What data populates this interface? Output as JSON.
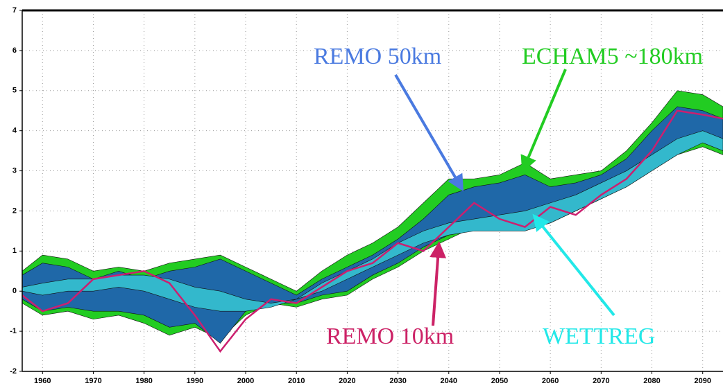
{
  "chart_data": {
    "type": "band",
    "x": [
      1956,
      1960,
      1965,
      1970,
      1975,
      1980,
      1985,
      1990,
      1995,
      2000,
      2005,
      2010,
      2015,
      2020,
      2025,
      2030,
      2035,
      2040,
      2045,
      2050,
      2055,
      2060,
      2065,
      2070,
      2075,
      2080,
      2085,
      2090,
      2094
    ],
    "xlim": [
      1956,
      2094
    ],
    "xticks": [
      1960,
      1970,
      1980,
      1990,
      2000,
      2010,
      2020,
      2030,
      2040,
      2050,
      2060,
      2070,
      2080,
      2090
    ],
    "ylim": [
      -2,
      7
    ],
    "yticks": [
      -2,
      -1,
      0,
      1,
      2,
      3,
      4,
      5,
      6,
      7
    ],
    "grid": true,
    "series": [
      {
        "name": "ECHAM5 ~180km",
        "color": "#22cc22",
        "upper": [
          0.5,
          0.9,
          0.8,
          0.5,
          0.6,
          0.5,
          0.7,
          0.8,
          0.9,
          0.6,
          0.3,
          0.0,
          0.5,
          0.9,
          1.2,
          1.6,
          2.2,
          2.8,
          2.8,
          2.9,
          3.2,
          2.8,
          2.9,
          3.0,
          3.5,
          4.2,
          5.0,
          4.9,
          4.6
        ],
        "lower": [
          -0.3,
          -0.6,
          -0.5,
          -0.7,
          -0.6,
          -0.8,
          -1.1,
          -0.9,
          -1.2,
          -0.6,
          -0.3,
          -0.4,
          -0.2,
          -0.1,
          0.3,
          0.6,
          1.0,
          1.3,
          1.6,
          1.7,
          1.8,
          1.7,
          2.0,
          2.3,
          2.6,
          3.0,
          3.4,
          3.6,
          3.4
        ]
      },
      {
        "name": "REMO 50km",
        "color": "#1f68a8",
        "upper": [
          0.4,
          0.7,
          0.6,
          0.3,
          0.5,
          0.3,
          0.5,
          0.6,
          0.8,
          0.5,
          0.2,
          -0.1,
          0.3,
          0.6,
          0.9,
          1.3,
          1.8,
          2.4,
          2.6,
          2.7,
          2.9,
          2.6,
          2.7,
          2.9,
          3.3,
          4.0,
          4.6,
          4.5,
          4.3
        ],
        "lower": [
          -0.2,
          -0.5,
          -0.4,
          -0.5,
          -0.5,
          -0.6,
          -0.9,
          -0.8,
          -1.3,
          -0.5,
          -0.3,
          -0.3,
          -0.1,
          0.0,
          0.4,
          0.7,
          1.1,
          1.4,
          1.6,
          1.7,
          1.8,
          1.8,
          2.1,
          2.4,
          2.7,
          3.1,
          3.5,
          3.7,
          3.5
        ]
      },
      {
        "name": "WETTREG",
        "color": "#33b8cc",
        "upper": [
          0.1,
          0.2,
          0.3,
          0.3,
          0.4,
          0.4,
          0.3,
          0.1,
          0.0,
          -0.2,
          -0.3,
          -0.2,
          0.2,
          0.5,
          0.8,
          1.2,
          1.5,
          1.7,
          1.8,
          1.9,
          2.0,
          2.2,
          2.4,
          2.7,
          3.0,
          3.4,
          3.8,
          4.0,
          3.8
        ],
        "lower": [
          0.0,
          -0.1,
          0.0,
          0.0,
          0.1,
          0.0,
          -0.2,
          -0.4,
          -0.5,
          -0.5,
          -0.4,
          -0.2,
          0.0,
          0.3,
          0.6,
          0.9,
          1.2,
          1.4,
          1.5,
          1.5,
          1.5,
          1.7,
          2.0,
          2.3,
          2.6,
          3.0,
          3.4,
          3.7,
          3.5
        ]
      },
      {
        "name": "REMO 10km",
        "color": "#cc1f6f",
        "values": [
          -0.1,
          -0.5,
          -0.3,
          0.3,
          0.4,
          0.5,
          0.2,
          -0.6,
          -1.5,
          -0.7,
          -0.2,
          -0.3,
          0.1,
          0.5,
          0.7,
          1.2,
          1.0,
          1.6,
          2.2,
          1.8,
          1.6,
          2.1,
          1.9,
          2.4,
          2.8,
          3.5,
          4.5,
          4.4,
          4.3
        ]
      }
    ],
    "annotation_colors": [
      "#22cc22",
      "#4a7ae0",
      "#22e8e8",
      "#cc2266"
    ]
  }
}
